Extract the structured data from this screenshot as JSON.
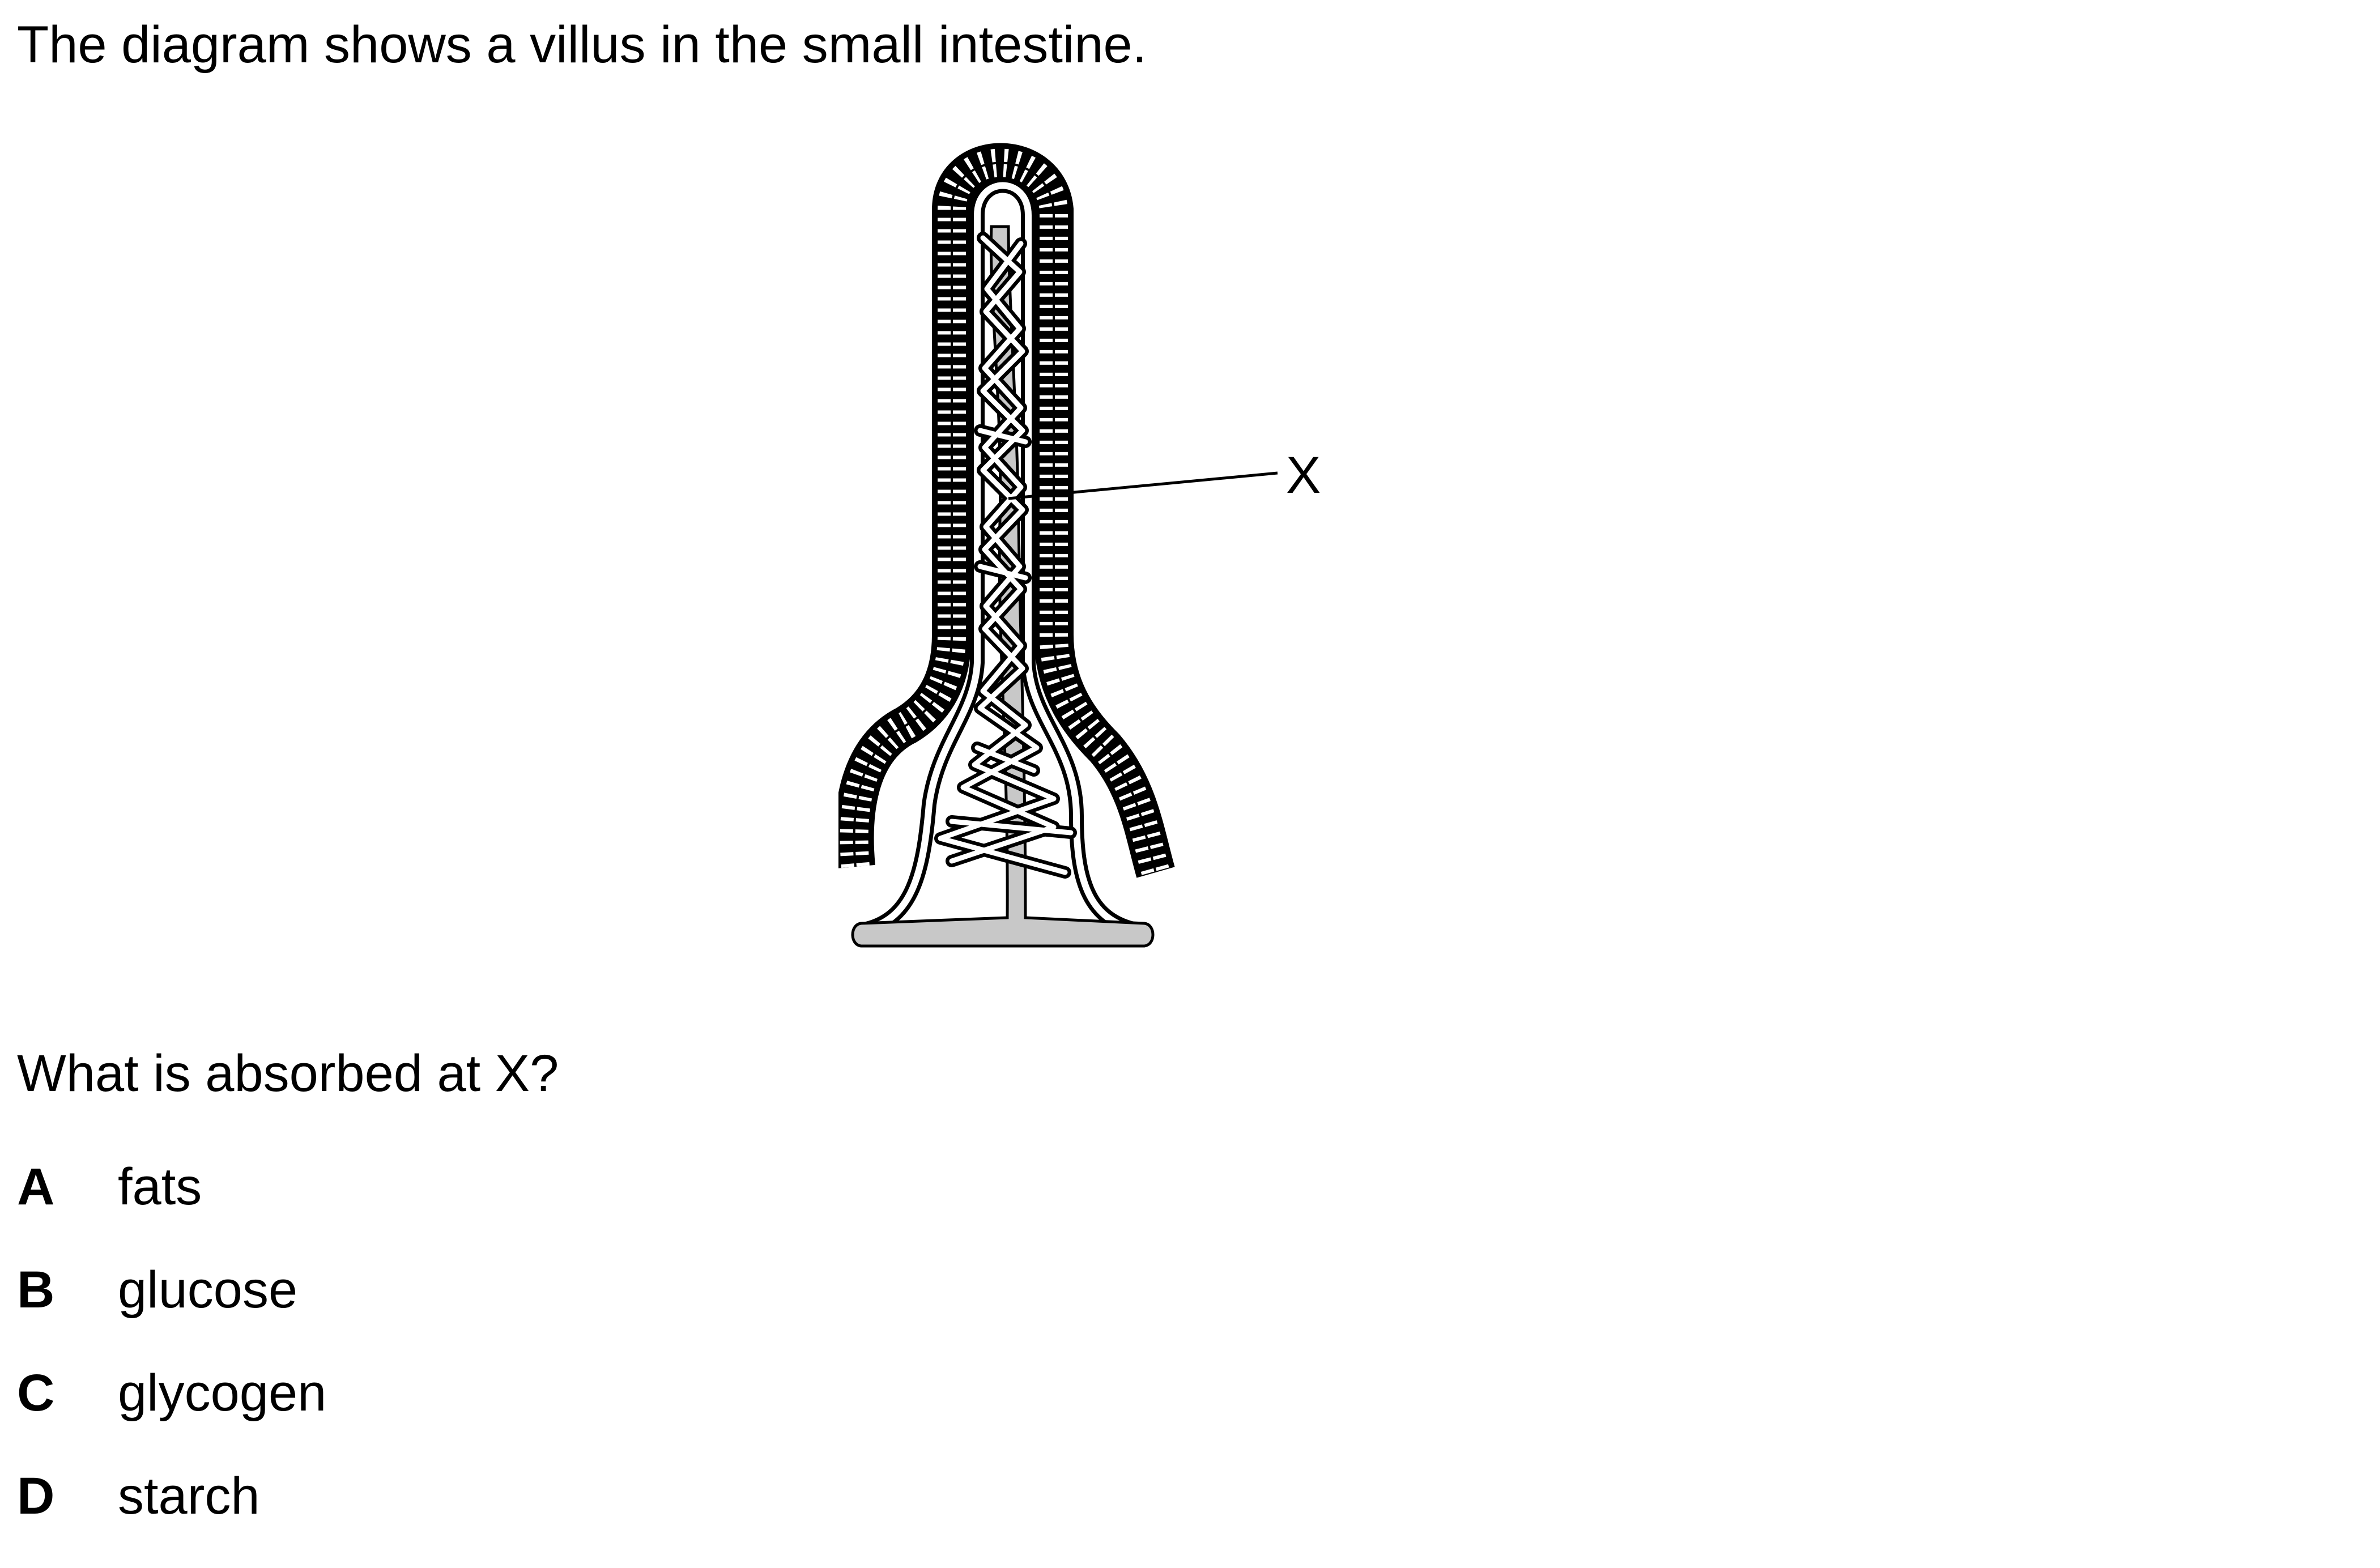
{
  "intro_text": "The diagram shows a villus in the small intestine.",
  "diagram": {
    "label": "X",
    "colors": {
      "outline": "#000000",
      "lacteal_fill": "#c8c8c8",
      "background": "#ffffff"
    }
  },
  "question": "What is absorbed at X?",
  "options": [
    {
      "letter": "A",
      "text": "fats"
    },
    {
      "letter": "B",
      "text": "glucose"
    },
    {
      "letter": "C",
      "text": "glycogen"
    },
    {
      "letter": "D",
      "text": "starch"
    }
  ]
}
